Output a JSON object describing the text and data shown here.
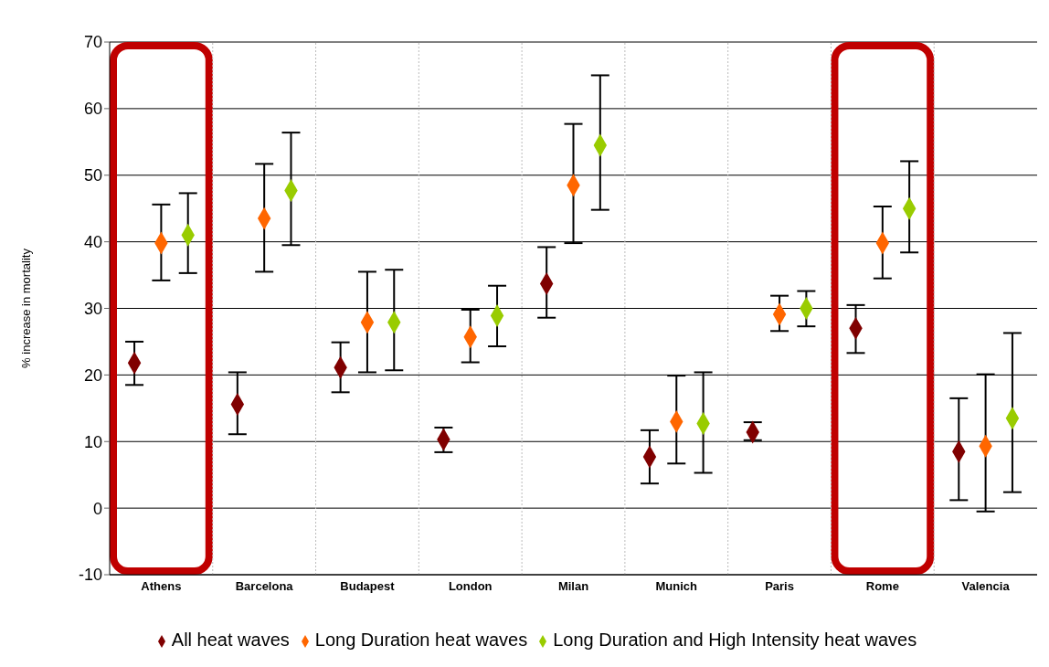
{
  "chart_data": {
    "type": "scatter",
    "ylabel": "% increase in mortality",
    "categories": [
      "Athens",
      "Barcelona",
      "Budapest",
      "London",
      "Milan",
      "Munich",
      "Paris",
      "Rome",
      "Valencia"
    ],
    "series": [
      {
        "name": "All heat waves",
        "color": "#800000",
        "values": [
          21.8,
          15.6,
          21.1,
          10.3,
          33.7,
          7.7,
          11.4,
          27,
          8.5
        ],
        "errors": [
          [
            18.5,
            25
          ],
          [
            11.1,
            20.4
          ],
          [
            17.4,
            24.9
          ],
          [
            8.4,
            12.1
          ],
          [
            28.6,
            39.2
          ],
          [
            3.7,
            11.7
          ],
          [
            10.2,
            12.9
          ],
          [
            23.3,
            30.5
          ],
          [
            1.2,
            16.5
          ]
        ]
      },
      {
        "name": "Long Duration heat waves",
        "color": "#ff6600",
        "values": [
          39.8,
          43.5,
          27.9,
          25.7,
          48.5,
          13,
          29.1,
          39.8,
          9.3
        ],
        "errors": [
          [
            34.2,
            45.6
          ],
          [
            35.5,
            51.7
          ],
          [
            20.4,
            35.5
          ],
          [
            21.9,
            29.8
          ],
          [
            39.8,
            57.7
          ],
          [
            6.7,
            19.9
          ],
          [
            26.6,
            31.9
          ],
          [
            34.5,
            45.3
          ],
          [
            -0.5,
            20.1
          ]
        ]
      },
      {
        "name": "Long Duration and High Intensity heat waves",
        "color": "#99cc00",
        "values": [
          41,
          47.7,
          27.9,
          28.9,
          54.5,
          12.7,
          30,
          45,
          13.5
        ],
        "errors": [
          [
            35.3,
            47.3
          ],
          [
            39.5,
            56.4
          ],
          [
            20.7,
            35.8
          ],
          [
            24.3,
            33.4
          ],
          [
            44.8,
            65
          ],
          [
            5.3,
            20.4
          ],
          [
            27.3,
            32.6
          ],
          [
            38.4,
            52.1
          ],
          [
            2.4,
            26.3
          ]
        ]
      }
    ],
    "ylim": [
      -10,
      70
    ],
    "yticks": [
      -10,
      0,
      10,
      20,
      30,
      40,
      50,
      60,
      70
    ],
    "grid": true,
    "legend": "bottom",
    "marker": "diamond"
  }
}
